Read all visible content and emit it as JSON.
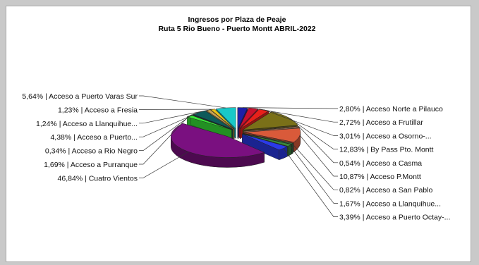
{
  "chart_data": {
    "type": "pie",
    "style": "3d-exploded",
    "title": "Ingresos por Plaza de Peaje",
    "subtitle": "Ruta 5 Rio Bueno - Puerto Montt ABRIL-2022",
    "slices": [
      {
        "label": "2,80% | Acceso Norte a Pilauco",
        "value": 2.8,
        "color": "#1f1fa8"
      },
      {
        "label": "2,72% | Acceso a Frutillar",
        "value": 2.72,
        "color": "#c8102e"
      },
      {
        "label": "3,01% | Acceso a Osorno-...",
        "value": 3.01,
        "color": "#e8201a"
      },
      {
        "label": "12,83% | By Pass Pto. Montt",
        "value": 12.83,
        "color": "#7a7018"
      },
      {
        "label": "0,54% | Acceso a Casma",
        "value": 0.54,
        "color": "#d9a07a"
      },
      {
        "label": "10,87% | Acceso P.Montt",
        "value": 10.87,
        "color": "#d95a3a"
      },
      {
        "label": "0,82% | Acceso a San Pablo",
        "value": 0.82,
        "color": "#2a6a3a"
      },
      {
        "label": "1,67% | Acceso a Llanquihue...",
        "value": 1.67,
        "color": "#3a8a3a"
      },
      {
        "label": "3,39% | Acceso a Puerto Octay-...",
        "value": 3.39,
        "color": "#2a3ae8"
      },
      {
        "label": "46,84% | Cuatro Vientos",
        "value": 46.84,
        "color": "#7a1080"
      },
      {
        "label": "1,69% | Acceso a Purranque",
        "value": 1.69,
        "color": "#38e838"
      },
      {
        "label": "0,34% | Acceso a Rio Negro",
        "value": 0.34,
        "color": "#1a5a5a"
      },
      {
        "label": "4,38% | Acceso a Puerto...",
        "value": 4.38,
        "color": "#0e5a5a"
      },
      {
        "label": "1,24% | Acceso a Llanquihue...",
        "value": 1.24,
        "color": "#c8a050"
      },
      {
        "label": "1,23% | Acceso a Fresia",
        "value": 1.23,
        "color": "#e8c018"
      },
      {
        "label": "5,64% | Acceso a Puerto Varas Sur",
        "value": 5.64,
        "color": "#18c8c8"
      }
    ]
  }
}
